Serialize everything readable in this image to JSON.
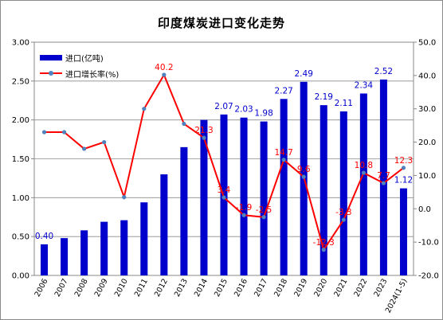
{
  "chart_data": {
    "type": "bar",
    "title": "印度煤炭进口变化走势",
    "categories": [
      "2006",
      "2007",
      "2008",
      "2009",
      "2010",
      "2011",
      "2012",
      "2013",
      "2014",
      "2015",
      "2016",
      "2017",
      "2018",
      "2019",
      "2020",
      "2021",
      "2022",
      "2023",
      "2024(1-5)"
    ],
    "series": [
      {
        "name": "进口(亿吨)",
        "type": "bar",
        "axis": "left",
        "color": "#0000cc",
        "values": [
          0.4,
          0.48,
          0.58,
          0.69,
          0.71,
          0.94,
          1.3,
          1.65,
          2.0,
          2.07,
          2.03,
          1.98,
          2.27,
          2.49,
          2.19,
          2.11,
          2.34,
          2.52,
          1.12
        ],
        "labels": [
          "0.40",
          "",
          "",
          "",
          "",
          "",
          "",
          "",
          "",
          "2.07",
          "2.03",
          "1.98",
          "2.27",
          "2.49",
          "2.19",
          "2.11",
          "2.34",
          "2.52",
          "1.12"
        ]
      },
      {
        "name": "进口增长率(%)",
        "type": "line",
        "axis": "right",
        "color": "#ff0000",
        "marker_color": "#4f81bd",
        "values": [
          23,
          23,
          18,
          20,
          3.5,
          30,
          40.2,
          25.5,
          21.3,
          3.4,
          -1.9,
          -2.5,
          14.7,
          9.6,
          -12.3,
          -3.3,
          10.8,
          7.7,
          12.3
        ],
        "labels": [
          "",
          "",
          "",
          "",
          "",
          "",
          "40.2",
          "",
          "21.3",
          "3.4",
          "-1.9",
          "-2.5",
          "14.7",
          "9.6",
          "-12.3",
          "-3.3",
          "10.8",
          "7.7",
          "12.3"
        ]
      }
    ],
    "y_left": {
      "min": 0,
      "max": 3,
      "ticks": [
        "0.00",
        "0.50",
        "1.00",
        "1.50",
        "2.00",
        "2.50",
        "3.00"
      ]
    },
    "y_right": {
      "min": -20,
      "max": 50,
      "ticks": [
        "-20.0",
        "-10.0",
        "0.0",
        "10.0",
        "20.0",
        "30.0",
        "40.0",
        "50.0"
      ]
    },
    "grid": true,
    "legend_position": "top-left"
  }
}
